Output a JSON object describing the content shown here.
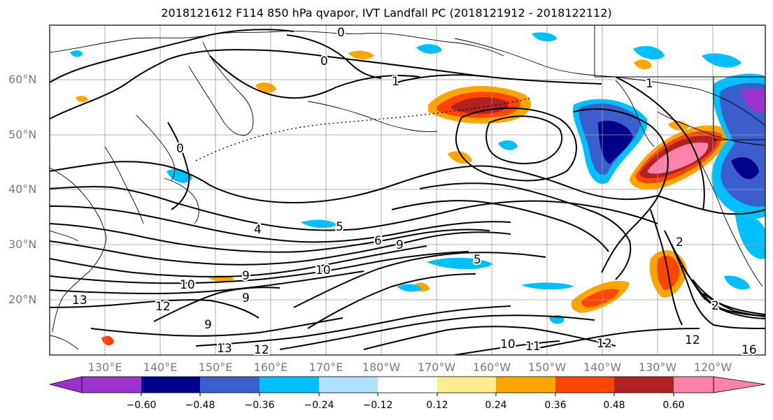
{
  "title": "2018121612 F114 850 hPa qvapor, IVT Landfall PC (2018121912 - 2018122112)",
  "lat_labels": [
    "60°N",
    "50°N",
    "40°N",
    "30°N",
    "20°N"
  ],
  "lon_labels": [
    "130°E",
    "140°E",
    "150°E",
    "160°E",
    "170°E",
    "180°W",
    "170°W",
    "160°W",
    "150°W",
    "140°W",
    "130°W",
    "120°W"
  ],
  "colorbar": {
    "colors": [
      "#9a32cd",
      "#00008b",
      "#3a5fcd",
      "#00bfff",
      "#b0e2ff",
      "#ffffff",
      "#ffec8b",
      "#ffa500",
      "#ff4500",
      "#b22222",
      "#ff82ab"
    ],
    "tick_labels": [
      "−0.60",
      "−0.48",
      "−0.36",
      "−0.24",
      "−0.12",
      "0.12",
      "0.24",
      "0.36",
      "0.48",
      "0.60"
    ]
  },
  "contour_labels": [
    "0",
    "0",
    "0",
    "1",
    "1",
    "2",
    "2",
    "4",
    "5",
    "5",
    "6",
    "9",
    "9",
    "9",
    "9",
    "10",
    "10",
    "10",
    "11",
    "12",
    "12",
    "12",
    "12",
    "13",
    "13",
    "16"
  ]
}
